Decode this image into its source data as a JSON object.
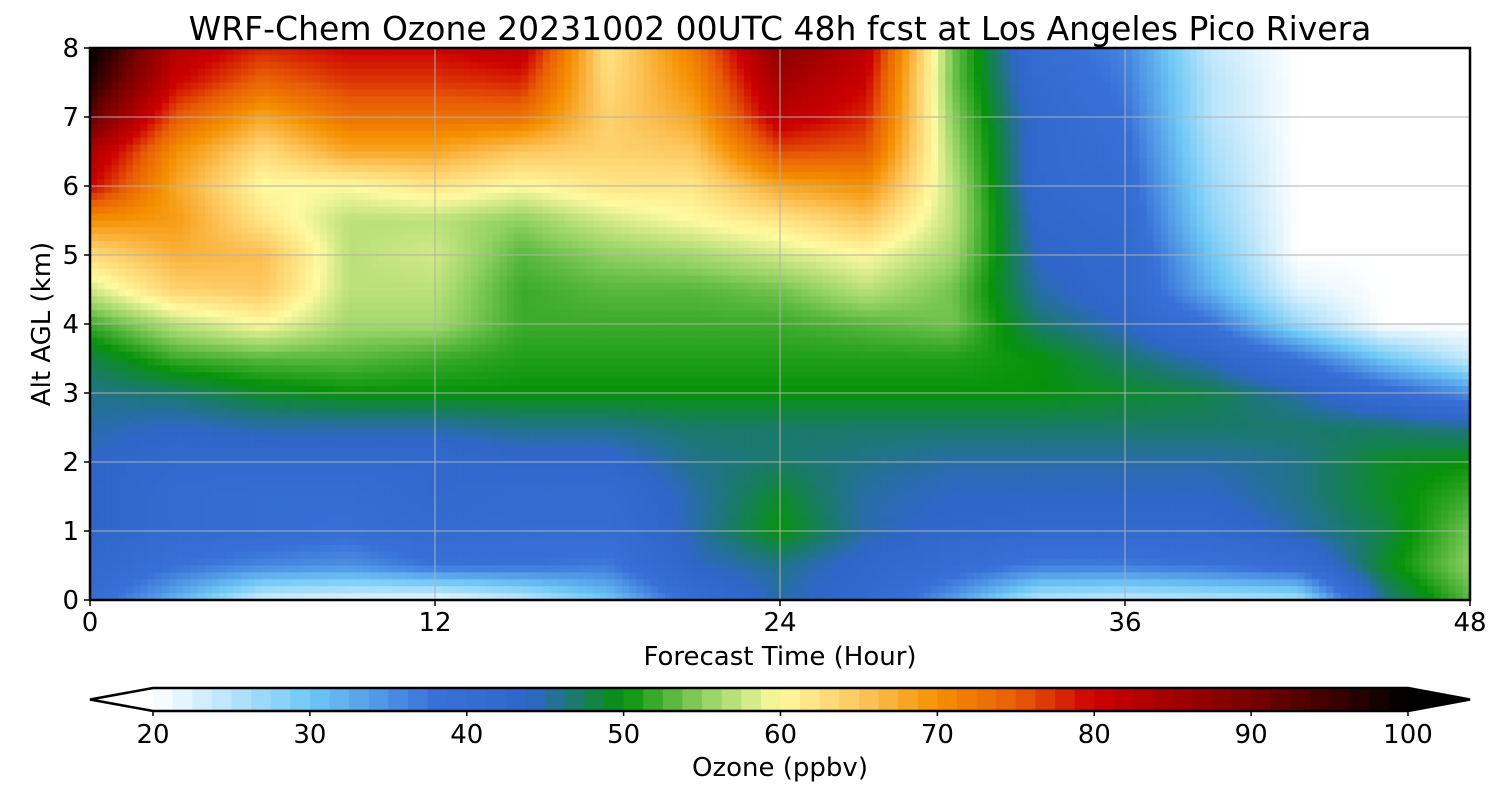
{
  "chart_data": {
    "type": "heatmap",
    "title": "WRF-Chem Ozone  20231002 00UTC 48h fcst at Los Angeles Pico Rivera",
    "xlabel": "Forecast Time (Hour)",
    "ylabel": "Alt AGL (km)",
    "xlim": [
      0,
      48
    ],
    "ylim": [
      0,
      8
    ],
    "xticks": [
      0,
      12,
      24,
      36,
      48
    ],
    "yticks": [
      0,
      1,
      2,
      3,
      4,
      5,
      6,
      7,
      8
    ],
    "grid": true,
    "x": [
      0,
      3,
      6,
      9,
      12,
      15,
      18,
      21,
      24,
      27,
      30,
      33,
      36,
      39,
      42,
      45,
      48
    ],
    "y": [
      0,
      0.5,
      1,
      1.5,
      2,
      2.5,
      3,
      3.5,
      4,
      4.5,
      5,
      5.5,
      6,
      6.5,
      7,
      7.5,
      8
    ],
    "z": [
      [
        40,
        32,
        23,
        22,
        21,
        24,
        30,
        40,
        45,
        42,
        34,
        25,
        24,
        25,
        26,
        46,
        53
      ],
      [
        42,
        38,
        36,
        35,
        38,
        38,
        37,
        44,
        46,
        43,
        40,
        37,
        37,
        38,
        40,
        49,
        55
      ],
      [
        44,
        41,
        40,
        39,
        41,
        40,
        40,
        45,
        50,
        45,
        43,
        42,
        42,
        42,
        45,
        48,
        54
      ],
      [
        44,
        41,
        40,
        40,
        42,
        41,
        41,
        45,
        49,
        45,
        44,
        44,
        44,
        44,
        46,
        49,
        52
      ],
      [
        44,
        42,
        42,
        42,
        42,
        43,
        43,
        46,
        47,
        46,
        45,
        45,
        45,
        45,
        46,
        49,
        50
      ],
      [
        45,
        44,
        45,
        45,
        45,
        46,
        46,
        47,
        47,
        47,
        47,
        47,
        47,
        47,
        47,
        47,
        46
      ],
      [
        46,
        47,
        49,
        50,
        50,
        50,
        50,
        50,
        50,
        50,
        50,
        50,
        49,
        48,
        45,
        40,
        35
      ],
      [
        48,
        52,
        53,
        53,
        52,
        51,
        51,
        51,
        51,
        51,
        51,
        50,
        47,
        44,
        38,
        30,
        24
      ],
      [
        52,
        57,
        60,
        56,
        56,
        52,
        52,
        52,
        52,
        53,
        54,
        47,
        44,
        38,
        27,
        20,
        20
      ],
      [
        58,
        64,
        65,
        57,
        57,
        52,
        53,
        53,
        54,
        57,
        54,
        45,
        42,
        32,
        22,
        20,
        20
      ],
      [
        63,
        67,
        66,
        57,
        58,
        53,
        55,
        56,
        58,
        60,
        56,
        44,
        42,
        30,
        20,
        20,
        20
      ],
      [
        70,
        69,
        62,
        57,
        57,
        55,
        58,
        60,
        62,
        65,
        57,
        43,
        41,
        28,
        20,
        20,
        20
      ],
      [
        80,
        68,
        60,
        60,
        62,
        60,
        62,
        62,
        68,
        70,
        57,
        42,
        40,
        27,
        20,
        20,
        20
      ],
      [
        84,
        70,
        63,
        68,
        68,
        65,
        64,
        65,
        76,
        75,
        56,
        42,
        39,
        26,
        20,
        20,
        20
      ],
      [
        92,
        75,
        68,
        73,
        73,
        73,
        64,
        68,
        82,
        78,
        55,
        42,
        38,
        25,
        20,
        20,
        20
      ],
      [
        97,
        80,
        74,
        77,
        77,
        78,
        63,
        70,
        85,
        80,
        54,
        41,
        37,
        25,
        20,
        20,
        20
      ],
      [
        100,
        83,
        78,
        80,
        80,
        82,
        62,
        72,
        88,
        82,
        54,
        40,
        36,
        24,
        20,
        20,
        20
      ]
    ],
    "colorbar": {
      "label": "Ozone  (ppbv)",
      "ticks": [
        20,
        30,
        40,
        50,
        60,
        70,
        80,
        90,
        100
      ],
      "min": 20,
      "max": 100,
      "extend": "both",
      "stops": [
        {
          "v": 20,
          "c": "#ffffff"
        },
        {
          "v": 30,
          "c": "#6fc8f6"
        },
        {
          "v": 38,
          "c": "#3870d8"
        },
        {
          "v": 44,
          "c": "#2f66c8"
        },
        {
          "v": 47,
          "c": "#1a7a6a"
        },
        {
          "v": 50,
          "c": "#06920a"
        },
        {
          "v": 55,
          "c": "#8ed060"
        },
        {
          "v": 60,
          "c": "#fffaa0"
        },
        {
          "v": 65,
          "c": "#fdc860"
        },
        {
          "v": 70,
          "c": "#f59000"
        },
        {
          "v": 75,
          "c": "#e85c06"
        },
        {
          "v": 80,
          "c": "#cc0000"
        },
        {
          "v": 90,
          "c": "#780000"
        },
        {
          "v": 100,
          "c": "#000000"
        }
      ]
    }
  }
}
